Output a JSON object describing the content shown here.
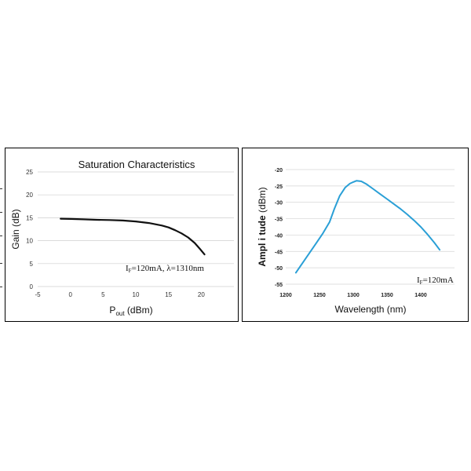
{
  "chart_data": [
    {
      "type": "line",
      "title": "Saturation Characteristics",
      "xlabel": {
        "main": "P",
        "sub": "out",
        "rest": " (dBm)"
      },
      "ylabel": "Gain (dB)",
      "xlim": [
        -5,
        25
      ],
      "ylim": [
        0,
        25
      ],
      "xticks": [
        "-5",
        "0",
        "5",
        "10",
        "15",
        "20"
      ],
      "yticks": [
        "0",
        "5",
        "10",
        "15",
        "20",
        "25"
      ],
      "grid": "horizontal",
      "annotation": {
        "pre": "I",
        "sub": "F",
        "post": "=120mA,  λ=1310nm"
      },
      "line_color": "#111111",
      "series": [
        {
          "x": [
            -1.5,
            0,
            2,
            4,
            6,
            8,
            10,
            12,
            14,
            15,
            16,
            17,
            18,
            19,
            19.8,
            20.5
          ],
          "y": [
            14.8,
            14.75,
            14.65,
            14.55,
            14.5,
            14.4,
            14.2,
            13.85,
            13.3,
            12.9,
            12.3,
            11.6,
            10.7,
            9.5,
            8.2,
            7.0
          ]
        }
      ]
    },
    {
      "type": "line",
      "title": "",
      "xlabel": "Wavelength (nm)",
      "ylabel": {
        "bold": "Ampl i tude",
        "rest": " (dBm)"
      },
      "xlim": [
        1200,
        1450
      ],
      "ylim": [
        -55,
        -20
      ],
      "xticks": [
        "1200",
        "1250",
        "1300",
        "1350",
        "1400"
      ],
      "yticks": [
        "-55",
        "-50",
        "-45",
        "-40",
        "-35",
        "-30",
        "-25",
        "-20"
      ],
      "grid": "horizontal",
      "annotation": {
        "pre": "I",
        "sub": "F",
        "post": "=120mA"
      },
      "line_color": "#2a9fd6",
      "series": [
        {
          "x": [
            1215,
            1225,
            1235,
            1245,
            1255,
            1265,
            1272,
            1280,
            1288,
            1295,
            1300,
            1305,
            1312,
            1320,
            1330,
            1340,
            1350,
            1360,
            1370,
            1380,
            1390,
            1400,
            1410,
            1420,
            1428
          ],
          "y": [
            -51.5,
            -48.5,
            -45.5,
            -42.5,
            -39.5,
            -36,
            -32,
            -28,
            -25.5,
            -24.3,
            -23.8,
            -23.4,
            -23.6,
            -24.5,
            -26,
            -27.5,
            -29,
            -30.5,
            -32,
            -33.7,
            -35.5,
            -37.5,
            -39.8,
            -42.3,
            -44.5
          ]
        }
      ]
    }
  ]
}
